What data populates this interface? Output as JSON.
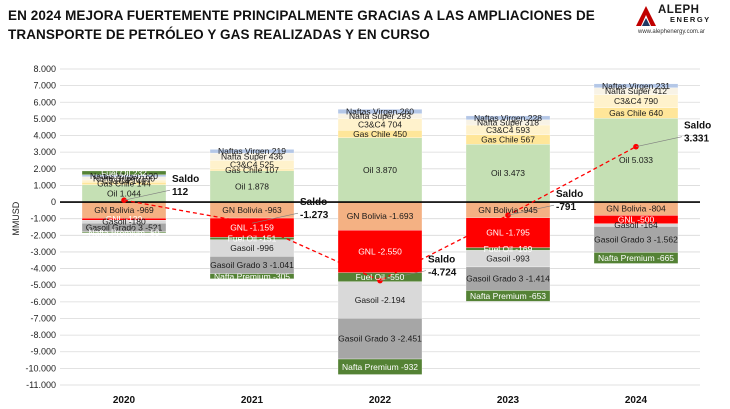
{
  "title": "EN 2024 MEJORA FUERTEMENTE PRINCIPALMENTE GRACIAS A LAS AMPLIACIONES DE TRANSPORTE DE PETRÓLEO Y GAS REALIZADAS Y EN CURSO",
  "logo": {
    "name": "ALEPH",
    "sub": "ENERGY",
    "url": "www.alephenergy.com.ar"
  },
  "colors": {
    "Oil": "#c5e0b4",
    "Gas Chile": "#ffe699",
    "C3&C4": "#fff2cc",
    "Nafta Super": "#f8f3e6",
    "Naftas Virgen": "#b4c7e7",
    "Fuel Oil": "#548235",
    "GN Bolivia": "#f4b183",
    "GNL": "#ff0000",
    "Gasoil": "#d9d9d9",
    "Gasoil Grado 3": "#a6a6a6",
    "Nafta Premium": "#548235",
    "saldo_line": "#ff0000",
    "zero_line": "#000000"
  },
  "chart_data": {
    "type": "bar",
    "stacked": true,
    "ylabel": "MMUSD",
    "ylim": [
      -11000,
      8000
    ],
    "ytick_step": 1000,
    "yticks": [
      "8.000",
      "7.000",
      "6.000",
      "5.000",
      "4.000",
      "3.000",
      "2.000",
      "1.000",
      "0",
      "-1.000",
      "-2.000",
      "-3.000",
      "-4.000",
      "-5.000",
      "-6.000",
      "-7.000",
      "-8.000",
      "-9.000",
      "-10.000",
      "-11.000"
    ],
    "grid": true,
    "legend": "none",
    "categories": [
      "2020",
      "2021",
      "2022",
      "2023",
      "2024"
    ],
    "positive": [
      [
        {
          "name": "Oil",
          "value": 1044,
          "label": "Oil 1.044"
        },
        {
          "name": "Gas Chile",
          "value": 144,
          "label": "Gas Chile 144"
        },
        {
          "name": "C3&C4",
          "value": 140,
          "label": "C3&C4 140"
        },
        {
          "name": "Nafta Super",
          "value": 190,
          "label": "Nafta Super 190"
        },
        {
          "name": "Naftas Virgen",
          "value": 120,
          "label": "Naftas Virgen 120"
        },
        {
          "name": "Fuel Oil",
          "value": 232,
          "label": "Fuel Oil 232"
        }
      ],
      [
        {
          "name": "Oil",
          "value": 1878,
          "label": "Oil 1.878"
        },
        {
          "name": "Gas Chile",
          "value": 107,
          "label": "Gas Chile 107"
        },
        {
          "name": "C3&C4",
          "value": 525,
          "label": "C3&C4 525"
        },
        {
          "name": "Nafta Super",
          "value": 436,
          "label": "Nafta Super 436"
        },
        {
          "name": "Naftas Virgen",
          "value": 219,
          "label": "Naftas Virgen 219"
        }
      ],
      [
        {
          "name": "Oil",
          "value": 3870,
          "label": "Oil 3.870"
        },
        {
          "name": "Gas Chile",
          "value": 450,
          "label": "Gas Chile 450"
        },
        {
          "name": "C3&C4",
          "value": 704,
          "label": "C3&C4 704"
        },
        {
          "name": "Nafta Super",
          "value": 293,
          "label": "Nafta Super 293"
        },
        {
          "name": "Naftas Virgen",
          "value": 260,
          "label": "Naftas Virgen 260"
        }
      ],
      [
        {
          "name": "Oil",
          "value": 3473,
          "label": "Oil 3.473"
        },
        {
          "name": "Gas Chile",
          "value": 567,
          "label": "Gas Chile 567"
        },
        {
          "name": "C3&C4",
          "value": 593,
          "label": "C3&C4 593"
        },
        {
          "name": "Nafta Super",
          "value": 318,
          "label": "Nafta Super 318"
        },
        {
          "name": "Naftas Virgen",
          "value": 228,
          "label": "Naftas Virgen 228"
        }
      ],
      [
        {
          "name": "Oil",
          "value": 5033,
          "label": "Oil 5.033"
        },
        {
          "name": "Gas Chile",
          "value": 640,
          "label": "Gas Chile 640"
        },
        {
          "name": "C3&C4",
          "value": 790,
          "label": "C3&C4 790"
        },
        {
          "name": "Nafta Super",
          "value": 412,
          "label": "Nafta Super 412"
        },
        {
          "name": "Naftas Virgen",
          "value": 231,
          "label": "Naftas Virgen 231"
        }
      ]
    ],
    "negative": [
      [
        {
          "name": "GN Bolivia",
          "value": -969,
          "label": "GN Bolivia -969"
        },
        {
          "name": "GNL",
          "value": -120,
          "label": "GNL -120"
        },
        {
          "name": "Gasoil",
          "value": -180,
          "label": "Gasoil -180"
        },
        {
          "name": "Gasoil Grado 3",
          "value": -521,
          "label": "Gasoil Grado 3 -521"
        },
        {
          "name": "Nafta Premium",
          "value": -59,
          "label": "Nafta Premium -59"
        }
      ],
      [
        {
          "name": "GN Bolivia",
          "value": -963,
          "label": "GN Bolivia -963"
        },
        {
          "name": "GNL",
          "value": -1159,
          "label": "GNL -1.159"
        },
        {
          "name": "Fuel Oil",
          "value": -151,
          "label": "Fuel Oil -151"
        },
        {
          "name": "Gasoil",
          "value": -996,
          "label": "Gasoil -996"
        },
        {
          "name": "Gasoil Grado 3",
          "value": -1041,
          "label": "Gasoil Grado 3 -1.041"
        },
        {
          "name": "Nafta Premium",
          "value": -305,
          "label": "Nafta Premium -305"
        }
      ],
      [
        {
          "name": "GN Bolivia",
          "value": -1693,
          "label": "GN Bolivia -1.693"
        },
        {
          "name": "GNL",
          "value": -2550,
          "label": "GNL -2.550"
        },
        {
          "name": "Fuel Oil",
          "value": -550,
          "label": "Fuel Oil -550"
        },
        {
          "name": "Gasoil",
          "value": -2194,
          "label": "Gasoil -2.194"
        },
        {
          "name": "Gasoil Grado 3",
          "value": -2451,
          "label": "Gasoil Grado 3 -2.451"
        },
        {
          "name": "Nafta Premium",
          "value": -932,
          "label": "Nafta Premium -932"
        }
      ],
      [
        {
          "name": "GN Bolivia",
          "value": -945,
          "label": "GN Bolivia -945"
        },
        {
          "name": "GNL",
          "value": -1795,
          "label": "GNL -1.795"
        },
        {
          "name": "Fuel Oil",
          "value": -169,
          "label": "Fuel Oil -169"
        },
        {
          "name": "Gasoil",
          "value": -993,
          "label": "Gasoil -993"
        },
        {
          "name": "Gasoil Grado 3",
          "value": -1414,
          "label": "Gasoil Grado 3 -1.414"
        },
        {
          "name": "Nafta Premium",
          "value": -653,
          "label": "Nafta Premium -653"
        }
      ],
      [
        {
          "name": "GN Bolivia",
          "value": -804,
          "label": "GN Bolivia -804"
        },
        {
          "name": "GNL",
          "value": -500,
          "label": "GNL -500"
        },
        {
          "name": "Gasoil",
          "value": -164,
          "label": "Gasoil -164"
        },
        {
          "name": "Gasoil Grado 3",
          "value": -1562,
          "label": "Gasoil Grado 3 -1.562"
        },
        {
          "name": "Nafta Premium",
          "value": -665,
          "label": "Nafta Premium -665"
        }
      ]
    ],
    "saldo": {
      "name": "Saldo",
      "values": [
        112,
        -1273,
        -4724,
        -791,
        3331
      ],
      "labels": [
        "112",
        "-1.273",
        "-4.724",
        "-791",
        "3.331"
      ]
    }
  }
}
